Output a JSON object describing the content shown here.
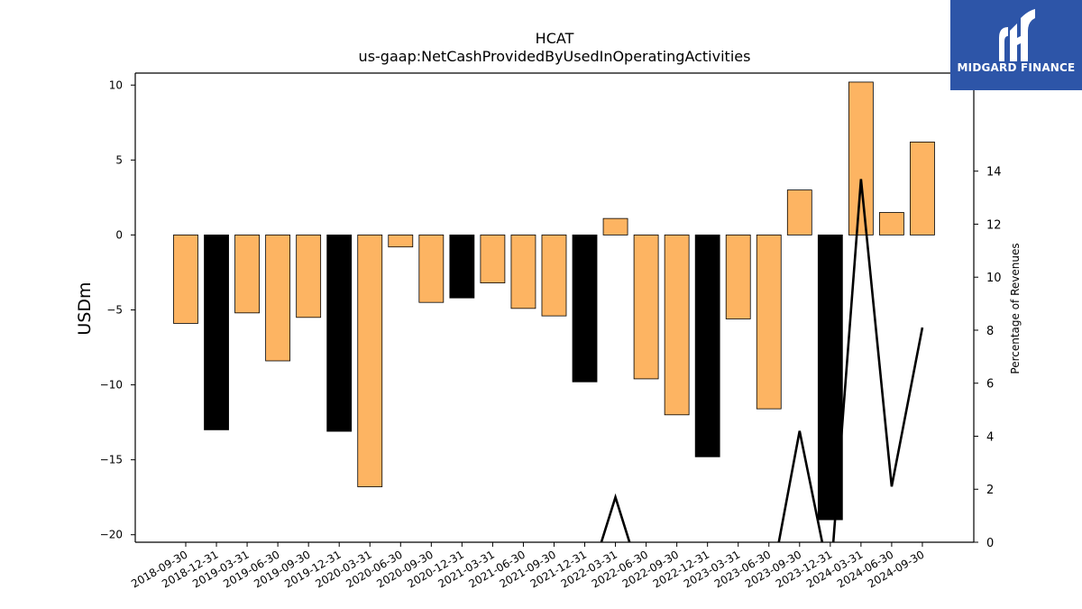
{
  "brand": {
    "name": "MIDGARD FINANCE",
    "bg": "#2d55a8"
  },
  "chart_data": {
    "type": "bar",
    "title": "HCAT",
    "subtitle": "us-gaap:NetCashProvidedByUsedInOperatingActivities",
    "ylabel": "USDm",
    "y2label": "Percentage of Revenues",
    "ylim": [
      -20.5,
      10.8
    ],
    "y2lim": [
      0,
      17.7
    ],
    "yticks": [
      10,
      5,
      0,
      -5,
      -10,
      -15,
      -20
    ],
    "y2ticks": [
      0,
      2,
      4,
      6,
      8,
      10,
      12,
      14
    ],
    "categories": [
      "2018-09-30",
      "2018-12-31",
      "2019-03-31",
      "2019-06-30",
      "2019-09-30",
      "2019-12-31",
      "2020-03-31",
      "2020-06-30",
      "2020-09-30",
      "2020-12-31",
      "2021-03-31",
      "2021-06-30",
      "2021-09-30",
      "2021-12-31",
      "2022-03-31",
      "2022-06-30",
      "2022-09-30",
      "2022-12-31",
      "2023-03-31",
      "2023-06-30",
      "2023-09-30",
      "2023-12-31",
      "2024-03-31",
      "2024-06-30",
      "2024-09-30"
    ],
    "series": [
      {
        "values": [
          -5.9,
          -13.0,
          -5.2,
          -8.4,
          -5.5,
          -13.1,
          -16.8,
          -0.8,
          -4.5,
          -4.2,
          -3.2,
          -4.9,
          -5.4,
          -9.8,
          1.1,
          -9.6,
          -12.0,
          -14.8,
          -5.6,
          -11.6,
          3.0,
          -19.0,
          10.2,
          1.5,
          6.2
        ],
        "fiscal_year_end": [
          false,
          true,
          false,
          false,
          false,
          true,
          false,
          false,
          false,
          true,
          false,
          false,
          false,
          true,
          false,
          false,
          false,
          true,
          false,
          false,
          false,
          true,
          false,
          false,
          false
        ]
      },
      {
        "type": "line",
        "values": [
          null,
          null,
          null,
          null,
          null,
          null,
          null,
          null,
          null,
          null,
          null,
          null,
          null,
          -2.0,
          1.7,
          -2.0,
          null,
          null,
          null,
          -2.0,
          4.2,
          -1.5,
          13.7,
          2.1,
          8.1
        ]
      }
    ],
    "colors": {
      "bar": "#fdb462",
      "bar_fiscal_year_end": "#000000",
      "line": "#000000"
    },
    "grid": false,
    "legend": "none"
  }
}
